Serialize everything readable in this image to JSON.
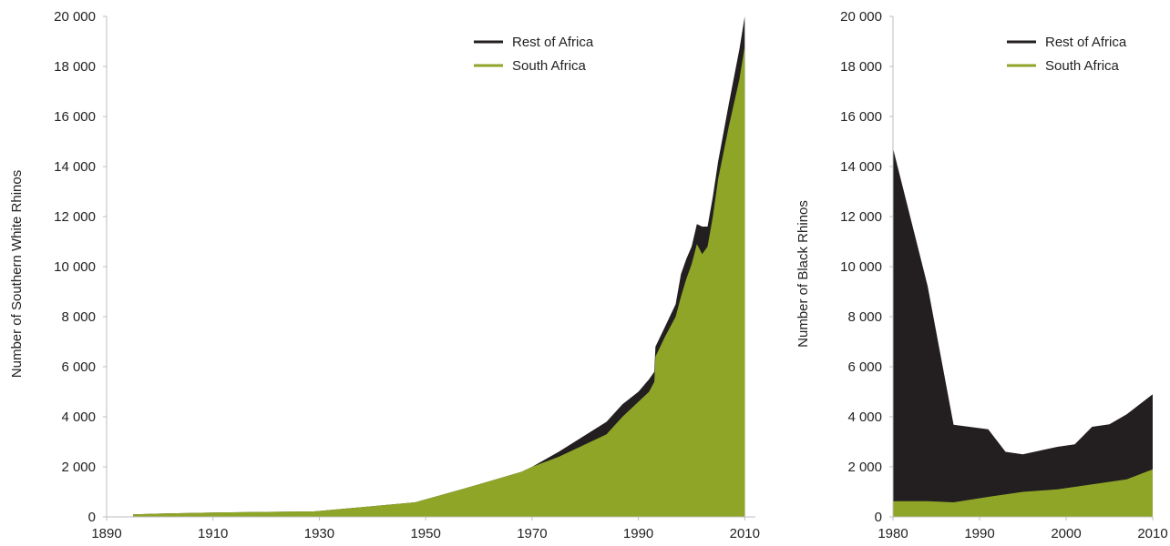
{
  "colors": {
    "rest_of_africa": "#231f20",
    "south_africa": "#8ea528",
    "axis": "#bdbdbd"
  },
  "chart_data": [
    {
      "type": "area",
      "stacked": true,
      "xlabel": "",
      "ylabel": "Number of Southern White Rhinos",
      "xlim": [
        1890,
        2012
      ],
      "ylim": [
        0,
        20000
      ],
      "x_ticks": [
        "1890",
        "1910",
        "1930",
        "1950",
        "1970",
        "1990",
        "2010"
      ],
      "y_ticks": [
        "0",
        "2 000",
        "4 000",
        "6 000",
        "8 000",
        "10 000",
        "12 000",
        "14 000",
        "16 000",
        "18 000",
        "20 000"
      ],
      "legend_position": "top-right",
      "x": [
        1895,
        1900,
        1910,
        1920,
        1929,
        1935,
        1940,
        1948,
        1960,
        1968,
        1970,
        1975,
        1984,
        1987,
        1990,
        1992,
        1993,
        1993.2,
        1995,
        1997,
        1998,
        1999,
        2000,
        2001,
        2002,
        2003,
        2004,
        2005,
        2007,
        2009,
        2010
      ],
      "series": [
        {
          "name": "South Africa",
          "values": [
            100,
            130,
            170,
            200,
            220,
            330,
            430,
            580,
            1300,
            1800,
            2000,
            2400,
            3300,
            4000,
            4600,
            5000,
            5400,
            6400,
            7200,
            8000,
            8800,
            9500,
            10100,
            10900,
            10500,
            10800,
            12000,
            13500,
            15600,
            17500,
            18800
          ]
        },
        {
          "name": "Rest of Africa",
          "values": [
            0,
            0,
            0,
            0,
            0,
            0,
            0,
            0,
            0,
            0,
            0,
            200,
            500,
            500,
            400,
            500,
            400,
            400,
            400,
            500,
            900,
            800,
            700,
            800,
            1100,
            800,
            800,
            700,
            900,
            1200,
            1200
          ]
        }
      ]
    },
    {
      "type": "area",
      "stacked": true,
      "xlabel": "",
      "ylabel": "Number of Black Rhinos",
      "xlim": [
        1980,
        2010
      ],
      "ylim": [
        0,
        20000
      ],
      "x_ticks": [
        "1980",
        "1990",
        "2000",
        "2010"
      ],
      "y_ticks": [
        "0",
        "2 000",
        "4 000",
        "6 000",
        "8 000",
        "10 000",
        "12 000",
        "14 000",
        "16 000",
        "18 000",
        "20 000"
      ],
      "legend_position": "top-right",
      "x": [
        1980,
        1984,
        1987,
        1991,
        1993,
        1995,
        1997,
        1999,
        2001,
        2003,
        2005,
        2007,
        2010
      ],
      "series": [
        {
          "name": "South Africa",
          "values": [
            630,
            630,
            580,
            800,
            900,
            1000,
            1050,
            1100,
            1200,
            1300,
            1400,
            1500,
            1900
          ]
        },
        {
          "name": "Rest of Africa",
          "values": [
            14100,
            8600,
            3100,
            2700,
            1700,
            1500,
            1600,
            1700,
            1700,
            2300,
            2300,
            2600,
            3000
          ]
        }
      ]
    }
  ]
}
